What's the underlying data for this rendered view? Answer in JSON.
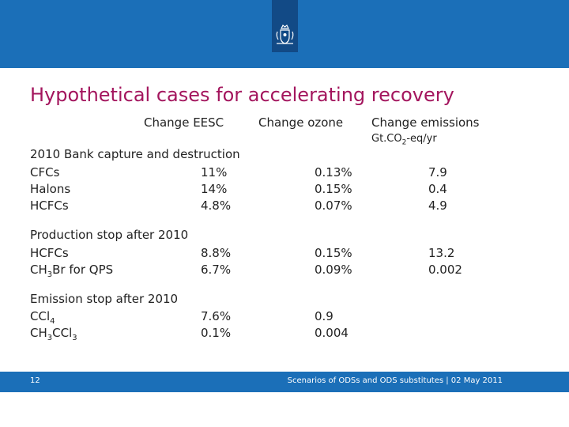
{
  "header": {
    "title": "Hypothetical cases for accelerating recovery",
    "col_eesc": "Change EESC",
    "col_ozone": "Change ozone",
    "col_emissions": "Change emissions",
    "unit_pre": "Gt.CO",
    "unit_sub": "2",
    "unit_post": "-eq/yr"
  },
  "sections": [
    {
      "label": "2010 Bank capture and destruction",
      "rows": [
        {
          "name": "CFCs",
          "eesc": "11%",
          "ozone": "0.13%",
          "emissions": "7.9"
        },
        {
          "name": "Halons",
          "eesc": "14%",
          "ozone": "0.15%",
          "emissions": "0.4"
        },
        {
          "name": "HCFCs",
          "eesc": "4.8%",
          "ozone": "0.07%",
          "emissions": "4.9"
        }
      ]
    },
    {
      "label": "Production stop after 2010",
      "rows": [
        {
          "name": "HCFCs",
          "eesc": "8.8%",
          "ozone": "0.15%",
          "emissions": "13.2"
        },
        {
          "name_pre": "CH",
          "name_sub": "3",
          "name_post": "Br for QPS",
          "eesc": "6.7%",
          "ozone": "0.09%",
          "emissions": "0.002"
        }
      ]
    },
    {
      "label": "Emission stop after 2010",
      "rows": [
        {
          "name_pre": "CCl",
          "name_sub": "4",
          "eesc": "7.6%",
          "ozone": "0.9"
        },
        {
          "name_pre": "CH",
          "name_sub": "3",
          "name_post": "CCl",
          "name_sub2": "3",
          "eesc": "0.1%",
          "ozone": "0.004"
        }
      ]
    }
  ],
  "footer": {
    "page_number": "12",
    "text": "Scenarios of ODSs and ODS substitutes | 02 May 2011"
  },
  "colors": {
    "banner": "#1b6fb8",
    "logo_box": "#124a86",
    "title": "#a3155d"
  },
  "icons": {
    "logo": "royal-coat-of-arms-icon"
  }
}
